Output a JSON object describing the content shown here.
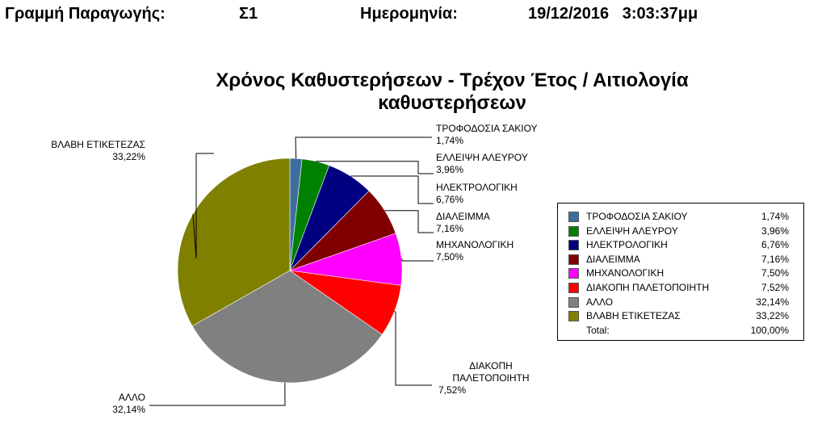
{
  "header": {
    "line_label": "Γραμμή Παραγωγής:",
    "line_value": "Σ1",
    "date_label": "Ημερομηνία:",
    "date_value": "19/12/2016   3:03:37μμ"
  },
  "chart_data": {
    "type": "pie",
    "title": "Χρόνος Καθυστερήσεων - Τρέχον Έτος / Αιτιολογία καθυστερήσεων",
    "title_lines": [
      "Χρόνος Καθυστερήσεων - Τρέχον Έτος / Αιτιολογία",
      "καθυστερήσεων"
    ],
    "slices": [
      {
        "name": "ΤΡΟΦΟΔΟΣΙΑ ΣΑΚΙΟΥ",
        "value": 1.74,
        "label": "1,74%",
        "color": "#3F6E9E"
      },
      {
        "name": "ΕΛΛΕΙΨΗ ΑΛΕΥΡΟΥ",
        "value": 3.96,
        "label": "3,96%",
        "color": "#008000"
      },
      {
        "name": "ΗΛΕΚΤΡΟΛΟΓΙΚΗ",
        "value": 6.76,
        "label": "6,76%",
        "color": "#000080"
      },
      {
        "name": "ΔΙΑΛΕΙΜΜΑ",
        "value": 7.16,
        "label": "7,16%",
        "color": "#800000"
      },
      {
        "name": "ΜΗΧΑΝΟΛΟΓΙΚΗ",
        "value": 7.5,
        "label": "7,50%",
        "color": "#FF00FF"
      },
      {
        "name": "ΔΙΑΚΟΠΗ ΠΑΛΕΤΟΠΟΙΗΤΗ",
        "value": 7.52,
        "label": "7,52%",
        "color": "#FF0000"
      },
      {
        "name": "ΑΛΛΟ",
        "value": 32.14,
        "label": "32,14%",
        "color": "#808080"
      },
      {
        "name": "ΒΛΑΒΗ ΕΤΙΚΕΤΕΖΑΣ",
        "value": 33.22,
        "label": "33,22%",
        "color": "#808000"
      }
    ],
    "legend": {
      "placement": "right",
      "total_label": "Total:",
      "total_value": "100,00%"
    }
  }
}
